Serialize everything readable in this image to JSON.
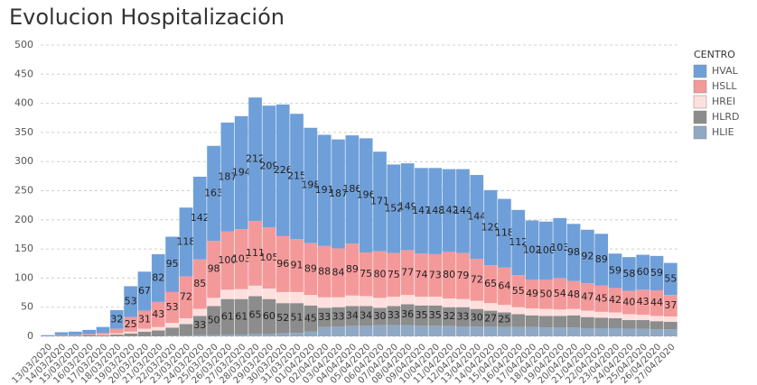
{
  "chart_data": {
    "type": "stacked_bar",
    "title": "Evolucion Hospitalización",
    "legend_title": "CENTRO",
    "legend": "right",
    "grid": true,
    "categories": [
      "13/03/2020",
      "14/03/2020",
      "15/03/2020",
      "16/03/2020",
      "17/03/2020",
      "18/03/2020",
      "19/03/2020",
      "20/03/2020",
      "21/03/2020",
      "22/03/2020",
      "23/03/2020",
      "24/03/2020",
      "25/03/2020",
      "26/03/2020",
      "27/03/2020",
      "28/03/2020",
      "29/03/2020",
      "30/03/2020",
      "31/03/2020",
      "01/04/2020",
      "02/04/2020",
      "03/04/2020",
      "04/04/2020",
      "05/04/2020",
      "06/04/2020",
      "07/04/2020",
      "08/04/2020",
      "09/04/2020",
      "10/04/2020",
      "11/04/2020",
      "12/04/2020",
      "13/04/2020",
      "14/04/2020",
      "15/04/2020",
      "16/04/2020",
      "17/04/2020",
      "18/04/2020",
      "19/04/2020",
      "20/04/2020",
      "21/04/2020",
      "22/04/2020",
      "23/04/2020",
      "24/04/2020",
      "25/04/2020",
      "26/04/2020",
      "27/04/2020"
    ],
    "ylim": [
      0,
      500
    ],
    "yticks": [
      0,
      50,
      100,
      150,
      200,
      250,
      300,
      350,
      400,
      450,
      500
    ],
    "series": [
      {
        "name": "HVAL",
        "color": "#6f9fd8",
        "labels": true,
        "values": [
          2,
          5,
          6,
          7,
          10,
          32,
          53,
          67,
          82,
          95,
          118,
          142,
          163,
          187,
          194,
          212,
          209,
          226,
          215,
          198,
          191,
          187,
          186,
          196,
          171,
          152,
          149,
          147,
          148,
          142,
          144,
          144,
          129,
          118,
          112,
          102,
          100,
          103,
          98,
          92,
          89,
          59,
          58,
          60,
          59,
          55
        ]
      },
      {
        "name": "HSLL",
        "color": "#f4999a",
        "labels": true,
        "values": [
          0,
          1,
          1,
          2,
          3,
          8,
          25,
          31,
          43,
          53,
          72,
          85,
          98,
          100,
          103,
          111,
          105,
          96,
          91,
          89,
          88,
          84,
          89,
          75,
          80,
          75,
          77,
          74,
          73,
          80,
          79,
          72,
          65,
          64,
          55,
          49,
          50,
          54,
          48,
          47,
          45,
          42,
          40,
          43,
          44,
          37
        ]
      },
      {
        "name": "HREI",
        "color": "#fde0dd",
        "labels": false,
        "values": [
          0,
          0,
          0,
          0,
          1,
          2,
          3,
          5,
          6,
          8,
          10,
          12,
          14,
          16,
          17,
          18,
          18,
          19,
          19,
          18,
          18,
          17,
          18,
          17,
          17,
          16,
          16,
          15,
          15,
          15,
          14,
          14,
          13,
          13,
          12,
          12,
          12,
          11,
          11,
          11,
          10,
          10,
          10,
          9,
          9,
          9
        ]
      },
      {
        "name": "HLRD",
        "color": "#8c8c8c",
        "labels": true,
        "values": [
          0,
          1,
          1,
          2,
          2,
          3,
          5,
          8,
          10,
          14,
          20,
          33,
          50,
          61,
          61,
          65,
          60,
          52,
          51,
          45,
          33,
          33,
          34,
          34,
          30,
          33,
          36,
          35,
          35,
          32,
          33,
          30,
          27,
          25,
          22,
          20,
          20,
          20,
          21,
          19,
          18,
          17,
          15,
          15,
          14,
          13
        ]
      },
      {
        "name": "HLIE",
        "color": "#8fa8c4",
        "labels": false,
        "values": [
          0,
          0,
          0,
          0,
          0,
          0,
          0,
          0,
          0,
          1,
          1,
          2,
          2,
          3,
          3,
          4,
          4,
          5,
          6,
          8,
          16,
          17,
          18,
          18,
          19,
          19,
          19,
          18,
          18,
          18,
          17,
          17,
          17,
          16,
          16,
          16,
          15,
          15,
          15,
          14,
          14,
          14,
          13,
          13,
          12,
          12
        ]
      }
    ]
  }
}
